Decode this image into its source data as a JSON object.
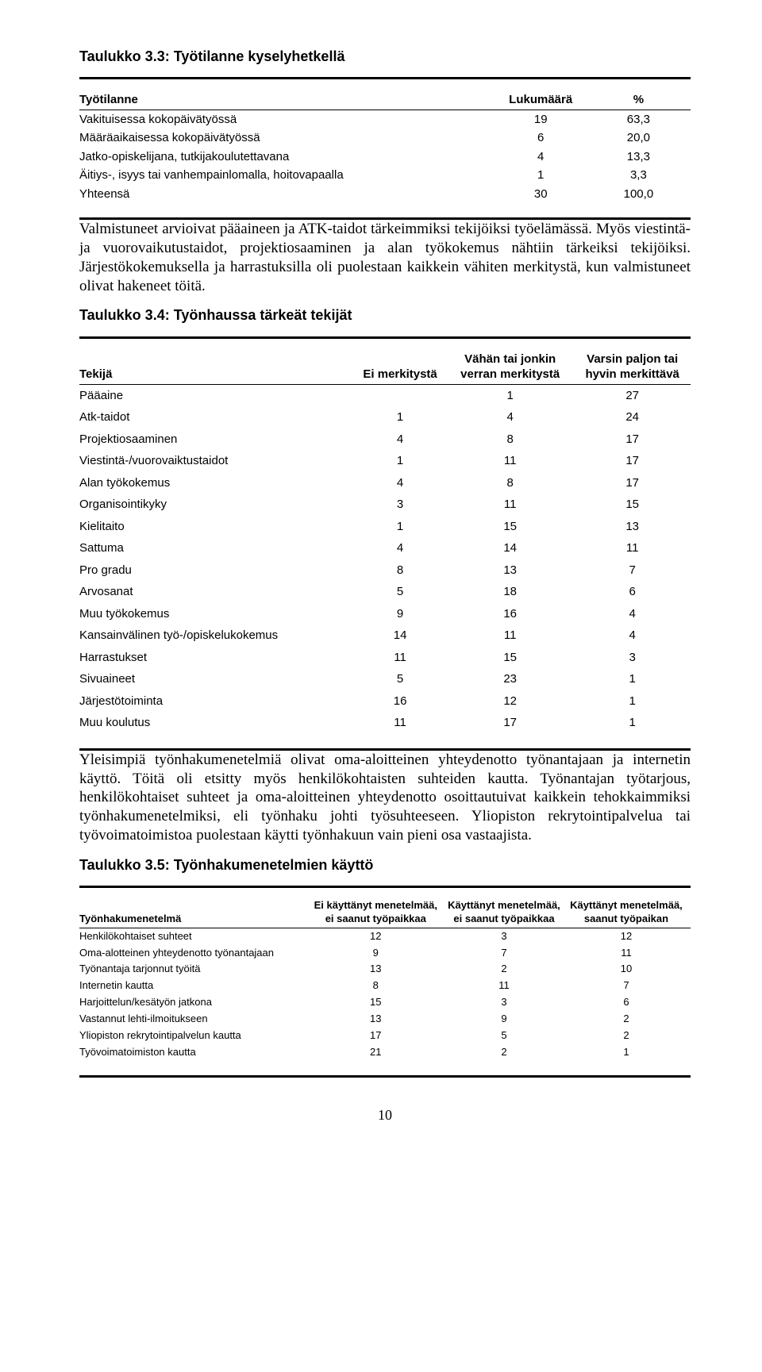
{
  "table1": {
    "title": "Taulukko 3.3: Työtilanne kyselyhetkellä",
    "headers": [
      "Työtilanne",
      "Lukumäärä",
      "%"
    ],
    "rows": [
      [
        "Vakituisessa kokopäivätyössä",
        "19",
        "63,3"
      ],
      [
        "Määräaikaisessa kokopäivätyössä",
        "6",
        "20,0"
      ],
      [
        "Jatko-opiskelijana, tutkijakoulutettavana",
        "4",
        "13,3"
      ],
      [
        "Äitiys-, isyys tai vanhempainlomalla, hoitovapaalla",
        "1",
        "3,3"
      ],
      [
        "Yhteensä",
        "30",
        "100,0"
      ]
    ]
  },
  "para1": "Valmistuneet arvioivat pääaineen ja ATK-taidot tärkeimmiksi tekijöiksi työelämässä. Myös viestintä- ja vuorovaikutustaidot, projektiosaaminen ja alan työkokemus nähtiin tärkeiksi tekijöiksi. Järjestökokemuksella ja harrastuksilla oli puolestaan kaikkein vähiten merkitystä, kun valmistuneet olivat hakeneet töitä.",
  "table2": {
    "title": "Taulukko 3.4: Työnhaussa tärkeät tekijät",
    "headers": [
      "Tekijä",
      "Ei merkitystä",
      "Vähän tai jonkin verran merkitystä",
      "Varsin paljon tai hyvin merkittävä"
    ],
    "rows": [
      [
        "Pääaine",
        "",
        "1",
        "27"
      ],
      [
        "Atk-taidot",
        "1",
        "4",
        "24"
      ],
      [
        "Projektiosaaminen",
        "4",
        "8",
        "17"
      ],
      [
        "Viestintä-/vuorovaiktustaidot",
        "1",
        "11",
        "17"
      ],
      [
        "Alan työkokemus",
        "4",
        "8",
        "17"
      ],
      [
        "Organisointikyky",
        "3",
        "11",
        "15"
      ],
      [
        "Kielitaito",
        "1",
        "15",
        "13"
      ],
      [
        "Sattuma",
        "4",
        "14",
        "11"
      ],
      [
        "Pro gradu",
        "8",
        "13",
        "7"
      ],
      [
        "Arvosanat",
        "5",
        "18",
        "6"
      ],
      [
        "Muu työkokemus",
        "9",
        "16",
        "4"
      ],
      [
        "Kansainvälinen työ-/opiskelukokemus",
        "14",
        "11",
        "4"
      ],
      [
        "Harrastukset",
        "11",
        "15",
        "3"
      ],
      [
        "Sivuaineet",
        "5",
        "23",
        "1"
      ],
      [
        "Järjestötoiminta",
        "16",
        "12",
        "1"
      ],
      [
        "Muu koulutus",
        "11",
        "17",
        "1"
      ]
    ]
  },
  "para2": "Yleisimpiä työnhakumenetelmiä olivat oma-aloitteinen yhteydenotto työnantajaan ja internetin käyttö. Töitä oli etsitty myös henkilökohtaisten suhteiden kautta. Työnantajan työtarjous, henkilökohtaiset suhteet ja oma-aloitteinen yhteydenotto osoittautuivat kaikkein tehokkaimmiksi työnhakumenetelmiksi, eli työnhaku johti työsuhteeseen. Yliopiston rekrytointipalvelua tai työvoimatoimistoa puolestaan käytti työnhakuun vain pieni osa vastaajista.",
  "table3": {
    "title": "Taulukko 3.5: Työnhakumenetelmien käyttö",
    "headers": [
      "Työnhakumenetelmä",
      "Ei käyttänyt menetelmää, ei saanut työpaikkaa",
      "Käyttänyt menetelmää, ei saanut työpaikkaa",
      "Käyttänyt menetelmää, saanut työpaikan"
    ],
    "rows": [
      [
        "Henkilökohtaiset suhteet",
        "12",
        "3",
        "12"
      ],
      [
        "Oma-alotteinen yhteydenotto työnantajaan",
        "9",
        "7",
        "11"
      ],
      [
        "Työnantaja tarjonnut työitä",
        "13",
        "2",
        "10"
      ],
      [
        "Internetin kautta",
        "8",
        "11",
        "7"
      ],
      [
        "Harjoittelun/kesätyön jatkona",
        "15",
        "3",
        "6"
      ],
      [
        "Vastannut lehti-ilmoitukseen",
        "13",
        "9",
        "2"
      ],
      [
        "Yliopiston rekrytointipalvelun kautta",
        "17",
        "5",
        "2"
      ],
      [
        "Työvoimatoimiston kautta",
        "21",
        "2",
        "1"
      ]
    ]
  },
  "pagenum": "10"
}
